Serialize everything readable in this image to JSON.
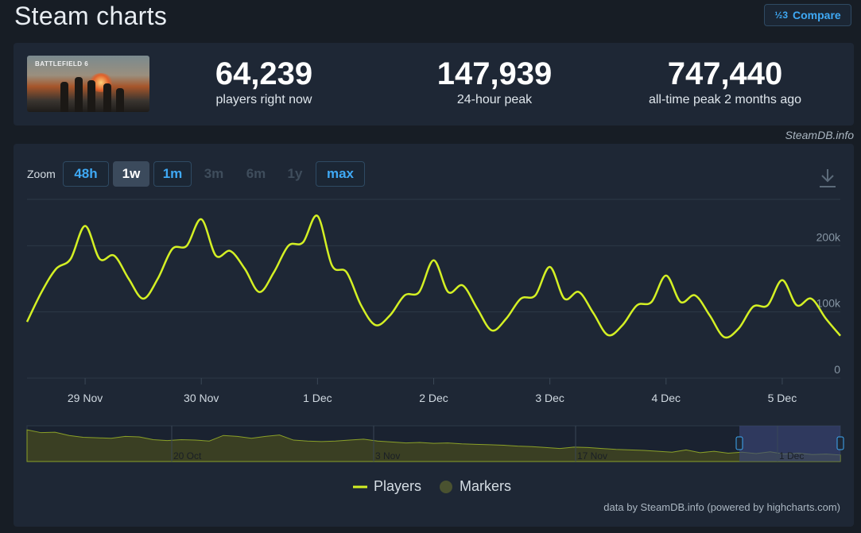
{
  "page": {
    "title": "Steam charts"
  },
  "compare": {
    "icon_glyph": "½3",
    "label": "Compare"
  },
  "game": {
    "image_text": "BATTLEFIELD 6"
  },
  "stats": [
    {
      "value": "64,239",
      "label": "players right now"
    },
    {
      "value": "147,939",
      "label": "24-hour peak"
    },
    {
      "value": "747,440",
      "label": "all-time peak 2 months ago"
    }
  ],
  "credit": "SteamDB.info",
  "zoom": {
    "label": "Zoom",
    "buttons": [
      {
        "label": "48h",
        "state": "enabled"
      },
      {
        "label": "1w",
        "state": "active"
      },
      {
        "label": "1m",
        "state": "enabled"
      },
      {
        "label": "3m",
        "state": "disabled"
      },
      {
        "label": "6m",
        "state": "disabled"
      },
      {
        "label": "1y",
        "state": "disabled"
      },
      {
        "label": "max",
        "state": "enabled"
      }
    ]
  },
  "legend": {
    "players": "Players",
    "markers": "Markers"
  },
  "footer_credit": "data by SteamDB.info (powered by highcharts.com)",
  "colors": {
    "series": "#d4f024",
    "accent": "#3fa9f5",
    "navigator_fill": "#3a3f23",
    "navigator_selection": "#3a4678"
  },
  "chart_data": {
    "type": "line",
    "series": [
      {
        "name": "Players"
      }
    ],
    "x_tick_labels": [
      "29 Nov",
      "30 Nov",
      "1 Dec",
      "2 Dec",
      "3 Dec",
      "4 Dec",
      "5 Dec"
    ],
    "y_tick_labels": [
      "0",
      "100k",
      "200k"
    ],
    "ylim": [
      0,
      270000
    ],
    "points": [
      [
        "28 Nov 12:00",
        85000
      ],
      [
        "28 Nov 15:00",
        130000
      ],
      [
        "28 Nov 18:00",
        165000
      ],
      [
        "28 Nov 21:00",
        180000
      ],
      [
        "29 Nov 00:00",
        230000
      ],
      [
        "29 Nov 03:00",
        180000
      ],
      [
        "29 Nov 06:00",
        185000
      ],
      [
        "29 Nov 09:00",
        150000
      ],
      [
        "29 Nov 12:00",
        120000
      ],
      [
        "29 Nov 15:00",
        150000
      ],
      [
        "29 Nov 18:00",
        195000
      ],
      [
        "29 Nov 21:00",
        200000
      ],
      [
        "30 Nov 00:00",
        240000
      ],
      [
        "30 Nov 03:00",
        185000
      ],
      [
        "30 Nov 06:00",
        192000
      ],
      [
        "30 Nov 09:00",
        165000
      ],
      [
        "30 Nov 12:00",
        130000
      ],
      [
        "30 Nov 15:00",
        160000
      ],
      [
        "30 Nov 18:00",
        200000
      ],
      [
        "30 Nov 21:00",
        205000
      ],
      [
        "1 Dec 00:00",
        245000
      ],
      [
        "1 Dec 03:00",
        170000
      ],
      [
        "1 Dec 06:00",
        160000
      ],
      [
        "1 Dec 09:00",
        110000
      ],
      [
        "1 Dec 12:00",
        80000
      ],
      [
        "1 Dec 15:00",
        95000
      ],
      [
        "1 Dec 18:00",
        125000
      ],
      [
        "1 Dec 21:00",
        130000
      ],
      [
        "2 Dec 00:00",
        178000
      ],
      [
        "2 Dec 03:00",
        130000
      ],
      [
        "2 Dec 06:00",
        140000
      ],
      [
        "2 Dec 09:00",
        105000
      ],
      [
        "2 Dec 12:00",
        72000
      ],
      [
        "2 Dec 15:00",
        90000
      ],
      [
        "2 Dec 18:00",
        120000
      ],
      [
        "2 Dec 21:00",
        125000
      ],
      [
        "3 Dec 00:00",
        168000
      ],
      [
        "3 Dec 03:00",
        120000
      ],
      [
        "3 Dec 06:00",
        130000
      ],
      [
        "3 Dec 09:00",
        98000
      ],
      [
        "3 Dec 12:00",
        65000
      ],
      [
        "3 Dec 15:00",
        80000
      ],
      [
        "3 Dec 18:00",
        110000
      ],
      [
        "3 Dec 21:00",
        115000
      ],
      [
        "4 Dec 00:00",
        155000
      ],
      [
        "4 Dec 03:00",
        115000
      ],
      [
        "4 Dec 06:00",
        125000
      ],
      [
        "4 Dec 09:00",
        95000
      ],
      [
        "4 Dec 12:00",
        62000
      ],
      [
        "4 Dec 15:00",
        75000
      ],
      [
        "4 Dec 18:00",
        108000
      ],
      [
        "4 Dec 21:00",
        110000
      ],
      [
        "5 Dec 00:00",
        148000
      ],
      [
        "5 Dec 03:00",
        110000
      ],
      [
        "5 Dec 06:00",
        120000
      ],
      [
        "5 Dec 09:00",
        90000
      ],
      [
        "5 Dec 12:00",
        64000
      ]
    ],
    "navigator": {
      "tick_labels": [
        "20 Oct",
        "3 Nov",
        "17 Nov",
        "1 Dec"
      ],
      "values": [
        680000,
        620000,
        630000,
        560000,
        520000,
        510000,
        500000,
        540000,
        530000,
        470000,
        450000,
        470000,
        460000,
        440000,
        560000,
        540000,
        500000,
        540000,
        570000,
        460000,
        440000,
        430000,
        440000,
        460000,
        480000,
        440000,
        420000,
        400000,
        410000,
        390000,
        400000,
        380000,
        370000,
        360000,
        350000,
        330000,
        320000,
        300000,
        280000,
        310000,
        300000,
        280000,
        260000,
        250000,
        240000,
        220000,
        200000,
        250000,
        190000,
        220000,
        180000,
        200000,
        170000,
        210000,
        160000,
        180000,
        150000,
        160000,
        140000
      ]
    }
  }
}
